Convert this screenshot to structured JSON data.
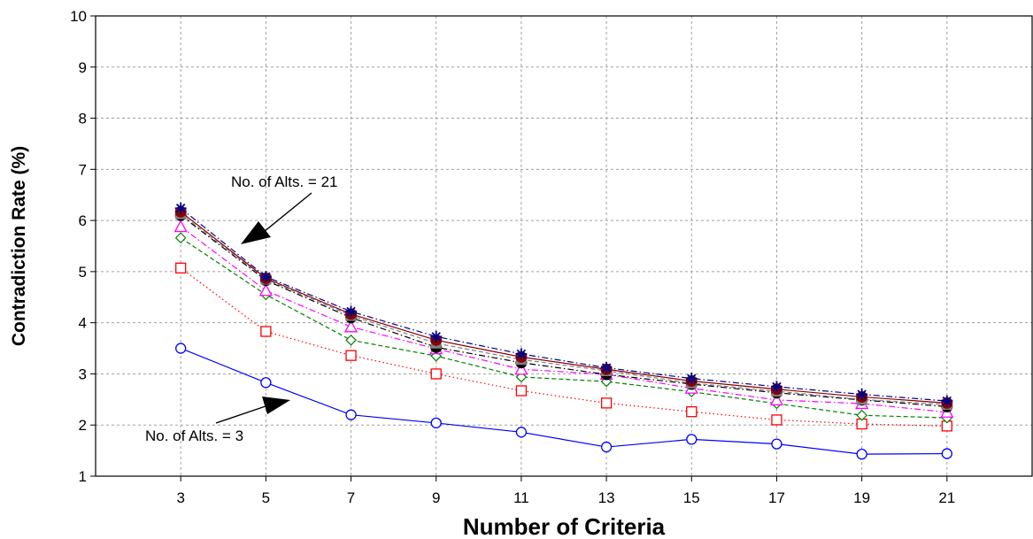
{
  "chart_data": {
    "type": "line",
    "xlabel": "Number of Criteria",
    "ylabel": "Contradiction Rate (%)",
    "x": [
      3,
      5,
      7,
      9,
      11,
      13,
      15,
      17,
      19,
      21
    ],
    "x_ticks": [
      "3",
      "5",
      "7",
      "9",
      "11",
      "13",
      "15",
      "17",
      "19",
      "21"
    ],
    "y_ticks": [
      "1",
      "2",
      "3",
      "4",
      "5",
      "6",
      "7",
      "8",
      "9",
      "10"
    ],
    "xlim": [
      1,
      23
    ],
    "ylim": [
      1,
      10
    ],
    "grid": true,
    "legend": "none",
    "series": [
      {
        "marker": "circle-open",
        "color": "#0000ff",
        "dash": "solid",
        "values": [
          3.5,
          2.83,
          2.2,
          2.04,
          1.86,
          1.57,
          1.72,
          1.63,
          1.43,
          1.44
        ]
      },
      {
        "marker": "square-open",
        "color": "#ff0000",
        "dash": "dot",
        "values": [
          5.07,
          3.83,
          3.36,
          3.0,
          2.67,
          2.43,
          2.26,
          2.1,
          2.02,
          1.98
        ]
      },
      {
        "marker": "diamond-open",
        "color": "#008000",
        "dash": "dash",
        "values": [
          5.66,
          4.55,
          3.66,
          3.35,
          2.94,
          2.85,
          2.65,
          2.42,
          2.19,
          2.14
        ]
      },
      {
        "marker": "triangle-open",
        "color": "#ff00ff",
        "dash": "dashdot",
        "values": [
          5.88,
          4.63,
          3.92,
          3.49,
          3.09,
          2.99,
          2.72,
          2.49,
          2.42,
          2.25
        ]
      },
      {
        "marker": "circle-filled",
        "color": "#000000",
        "dash": "dashdot",
        "values": [
          6.1,
          4.83,
          4.1,
          3.52,
          3.22,
          2.99,
          2.8,
          2.63,
          2.49,
          2.36
        ]
      },
      {
        "marker": "square-filled",
        "color": "#808080",
        "dash": "dash",
        "values": [
          6.13,
          4.85,
          4.14,
          3.6,
          3.28,
          3.06,
          2.82,
          2.66,
          2.5,
          2.4
        ]
      },
      {
        "marker": "circle-filled",
        "color": "#8b0000",
        "dash": "solid",
        "values": [
          6.17,
          4.87,
          4.17,
          3.66,
          3.33,
          3.09,
          2.86,
          2.7,
          2.55,
          2.43
        ]
      },
      {
        "marker": "star",
        "color": "#00008b",
        "dash": "dashdot",
        "values": [
          6.24,
          4.9,
          4.22,
          3.73,
          3.39,
          3.12,
          2.91,
          2.75,
          2.6,
          2.47
        ]
      }
    ],
    "annotations": [
      {
        "text": "No. of Alts. = 21"
      },
      {
        "text": "No. of Alts. = 3"
      }
    ]
  }
}
